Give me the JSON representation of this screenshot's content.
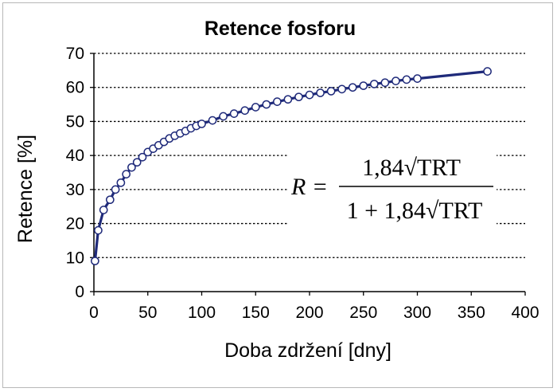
{
  "chart_data": {
    "type": "line",
    "title": "Retence fosforu",
    "xlabel": "Doba zdržení [dny]",
    "ylabel": "Retence [%]",
    "xlim": [
      0,
      400
    ],
    "ylim": [
      0,
      70
    ],
    "xticks": [
      "0",
      "50",
      "100",
      "150",
      "200",
      "250",
      "300",
      "350",
      "400"
    ],
    "yticks": [
      "0",
      "10",
      "20",
      "30",
      "40",
      "50",
      "60",
      "70"
    ],
    "grid": "horizontal dotted",
    "color": "#1f2a7a",
    "formula": {
      "lhs": "R =",
      "numerator": "1,84√TRT",
      "denominator": "1 + 1,84√TRT"
    },
    "series": [
      {
        "x": [
          1,
          4,
          9,
          15,
          20,
          25,
          30,
          35,
          40,
          45,
          50,
          55,
          60,
          65,
          70,
          75,
          80,
          85,
          90,
          95,
          100,
          110,
          120,
          130,
          140,
          150,
          160,
          170,
          180,
          190,
          200,
          210,
          220,
          230,
          240,
          250,
          260,
          270,
          280,
          290,
          300,
          365
        ],
        "y": [
          9,
          18,
          24,
          27,
          30,
          32,
          34.5,
          36.5,
          38,
          39.5,
          41,
          42,
          43,
          44,
          45,
          45.8,
          46.5,
          47.2,
          48,
          48.7,
          49.3,
          50.3,
          51.5,
          52.3,
          53.2,
          54.2,
          55,
          55.8,
          56.5,
          57.2,
          57.8,
          58.4,
          58.9,
          59.5,
          60,
          60.5,
          61,
          61.4,
          61.9,
          62.3,
          62.6,
          64.7
        ]
      }
    ]
  }
}
